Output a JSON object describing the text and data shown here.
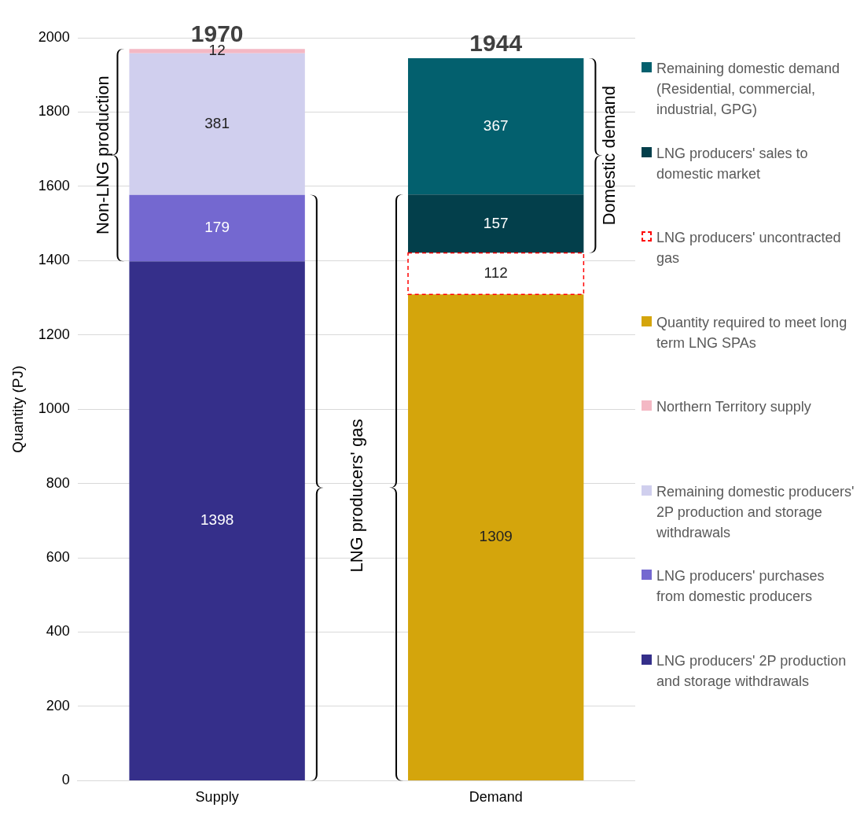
{
  "chart_data": {
    "type": "bar",
    "stacked": true,
    "ylabel": "Quantity (PJ)",
    "categories": [
      "Supply",
      "Demand"
    ],
    "series": [
      {
        "name": "LNG producers' 2P production and storage withdrawals",
        "color": "#352f8a",
        "values": [
          1398,
          null
        ]
      },
      {
        "name": "LNG producers' purchases from domestic producers",
        "color": "#7468d0",
        "values": [
          179,
          null
        ]
      },
      {
        "name": "Remaining domestic producers' 2P production and storage withdrawals",
        "color": "#d0cfee",
        "values": [
          381,
          null
        ]
      },
      {
        "name": "Northern Territory supply",
        "color": "#f4b8c4",
        "values": [
          12,
          null
        ]
      },
      {
        "name": "Quantity required to meet long term LNG SPAs",
        "color": "#d4a50c",
        "values": [
          null,
          1309
        ]
      },
      {
        "name": "LNG producers' uncontracted gas",
        "color": "#ff0000",
        "line_style": "dashed",
        "values": [
          null,
          112
        ]
      },
      {
        "name": "LNG producers' sales to domestic market",
        "color": "#033f4b",
        "values": [
          null,
          157
        ]
      },
      {
        "name": "Remaining domestic demand (Residential, commercial, industrial, GPG)",
        "color": "#03606e",
        "values": [
          null,
          367
        ]
      }
    ],
    "totals": [
      "1970",
      "1944"
    ],
    "data_labels": true,
    "ylim": [
      0,
      2000
    ],
    "yticks": [
      0,
      200,
      400,
      600,
      800,
      1000,
      1200,
      1400,
      1600,
      1800,
      2000
    ],
    "grid": "y",
    "legend": "right",
    "annotations": [
      "Non-LNG production",
      "LNG producers' gas",
      "Domestic demand"
    ]
  }
}
